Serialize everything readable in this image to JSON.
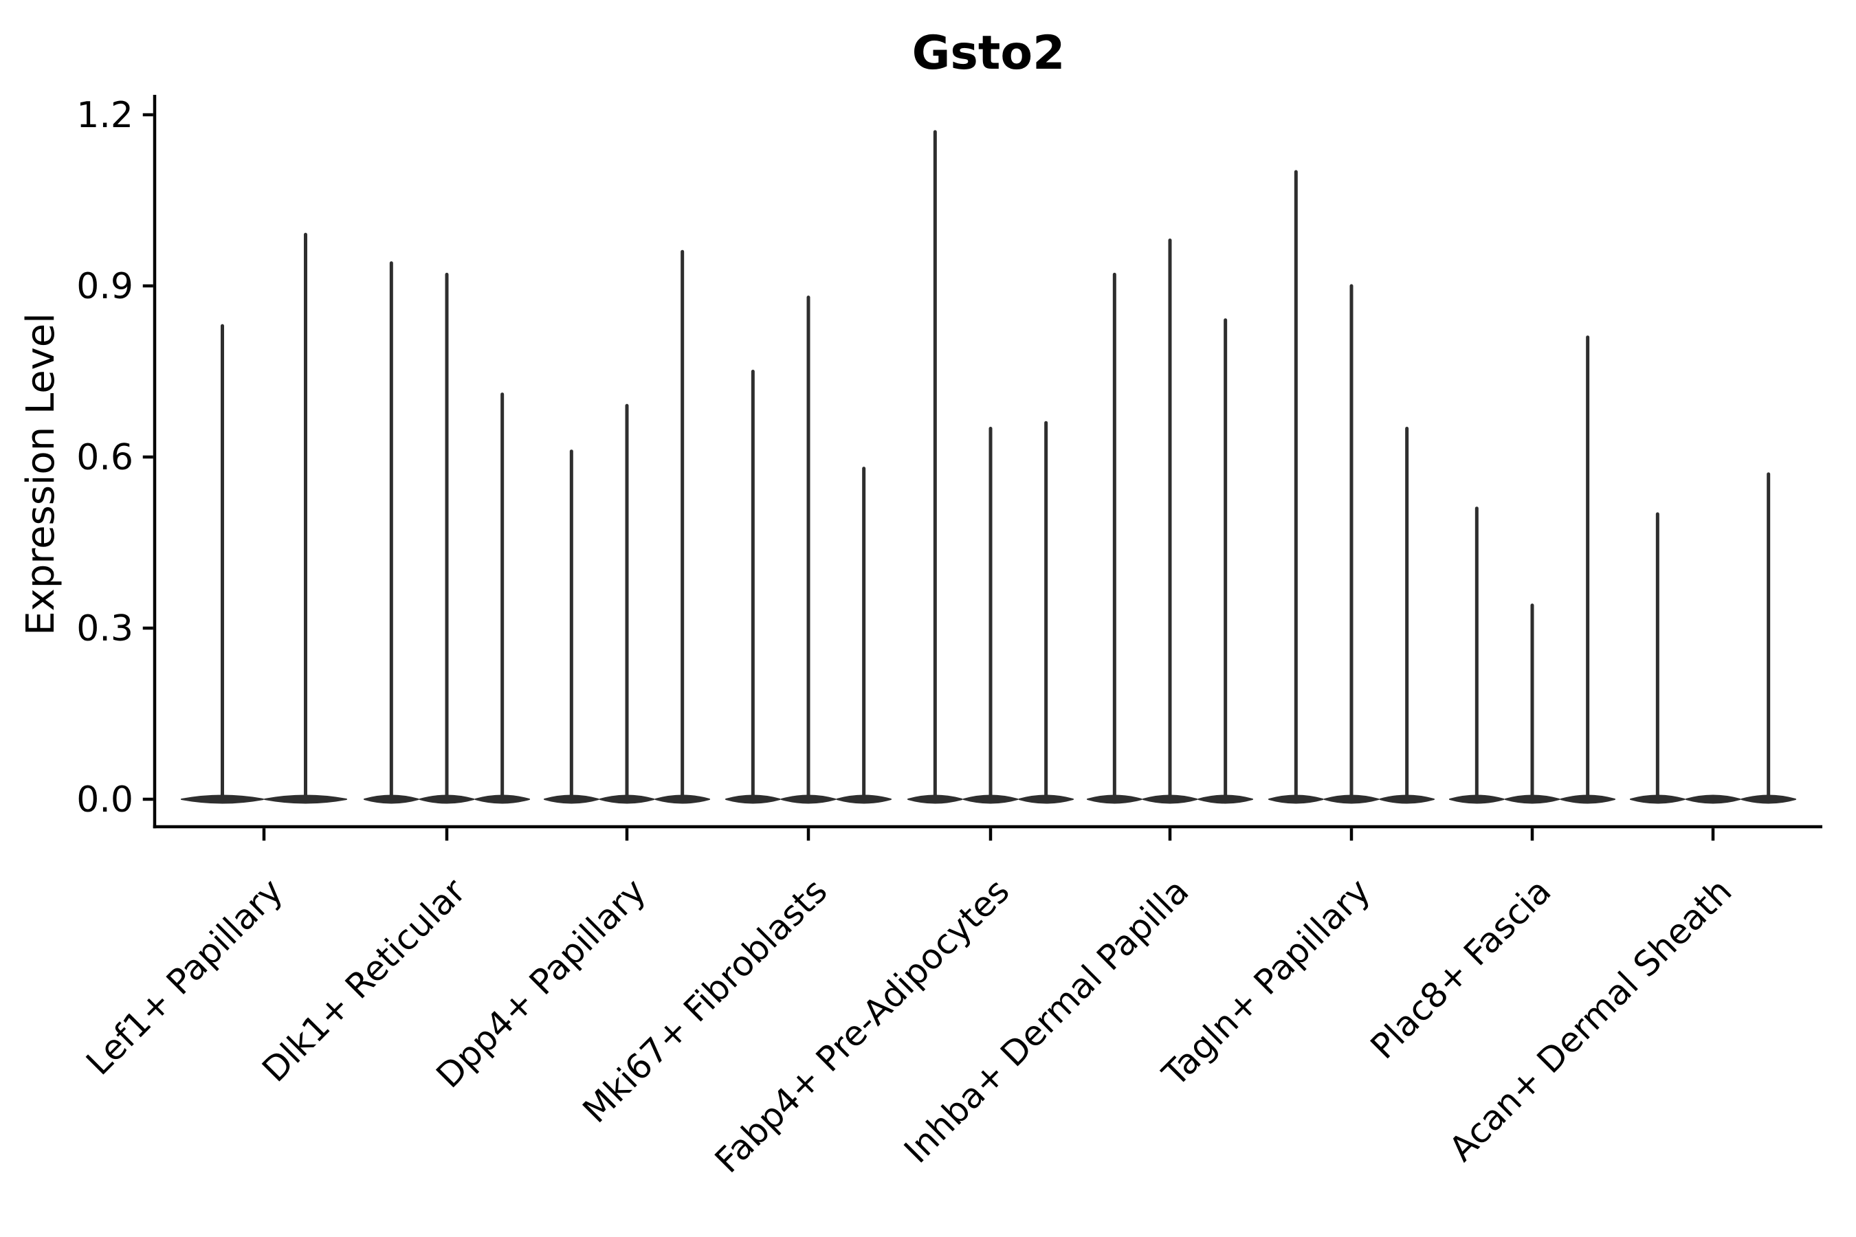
{
  "figure": {
    "title": "Gsto2",
    "background": "#ffffff"
  },
  "style": {
    "violin_color": "#2e2e2e",
    "axis_color": "#000000",
    "text_color": "#000000",
    "background": "#ffffff"
  },
  "chart_data": {
    "type": "violin",
    "title": "Gsto2",
    "xlabel": "",
    "ylabel": "Expression Level",
    "grid": false,
    "legend_position": "none",
    "ylim": [
      -0.05,
      1.235
    ],
    "y_tick_values": [
      0.0,
      0.3,
      0.6,
      0.9,
      1.2
    ],
    "y_tick_labels": [
      "0.0",
      "0.3",
      "0.6",
      "0.9",
      "1.2"
    ],
    "categories": [
      "Lef1+ Papillary",
      "Dlk1+ Reticular",
      "Dpp4+ Papillary",
      "Mki67+ Fibroblasts",
      "Fabp4+ Pre-Adipocytes",
      "Inhba+ Dermal Papilla",
      "Tagln+ Papillary",
      "Plac8+ Fascia",
      "Acan+ Dermal Sheath"
    ],
    "groups": [
      {
        "label": "Lef1+ Papillary",
        "violin_maxima": [
          0.83,
          0.99
        ]
      },
      {
        "label": "Dlk1+ Reticular",
        "violin_maxima": [
          0.94,
          0.92,
          0.71
        ]
      },
      {
        "label": "Dpp4+ Papillary",
        "violin_maxima": [
          0.61,
          0.69,
          0.96
        ]
      },
      {
        "label": "Mki67+ Fibroblasts",
        "violin_maxima": [
          0.75,
          0.88,
          0.58
        ]
      },
      {
        "label": "Fabp4+ Pre-Adipocytes",
        "violin_maxima": [
          1.17,
          0.65,
          0.66
        ]
      },
      {
        "label": "Inhba+ Dermal Papilla",
        "violin_maxima": [
          0.92,
          0.98,
          0.84
        ]
      },
      {
        "label": "Tagln+ Papillary",
        "violin_maxima": [
          1.1,
          0.9,
          0.65
        ]
      },
      {
        "label": "Plac8+ Fascia",
        "violin_maxima": [
          0.51,
          0.34,
          0.81
        ]
      },
      {
        "label": "Acan+ Dermal Sheath",
        "violin_maxima": [
          0.5,
          0.0,
          0.57
        ]
      }
    ]
  }
}
